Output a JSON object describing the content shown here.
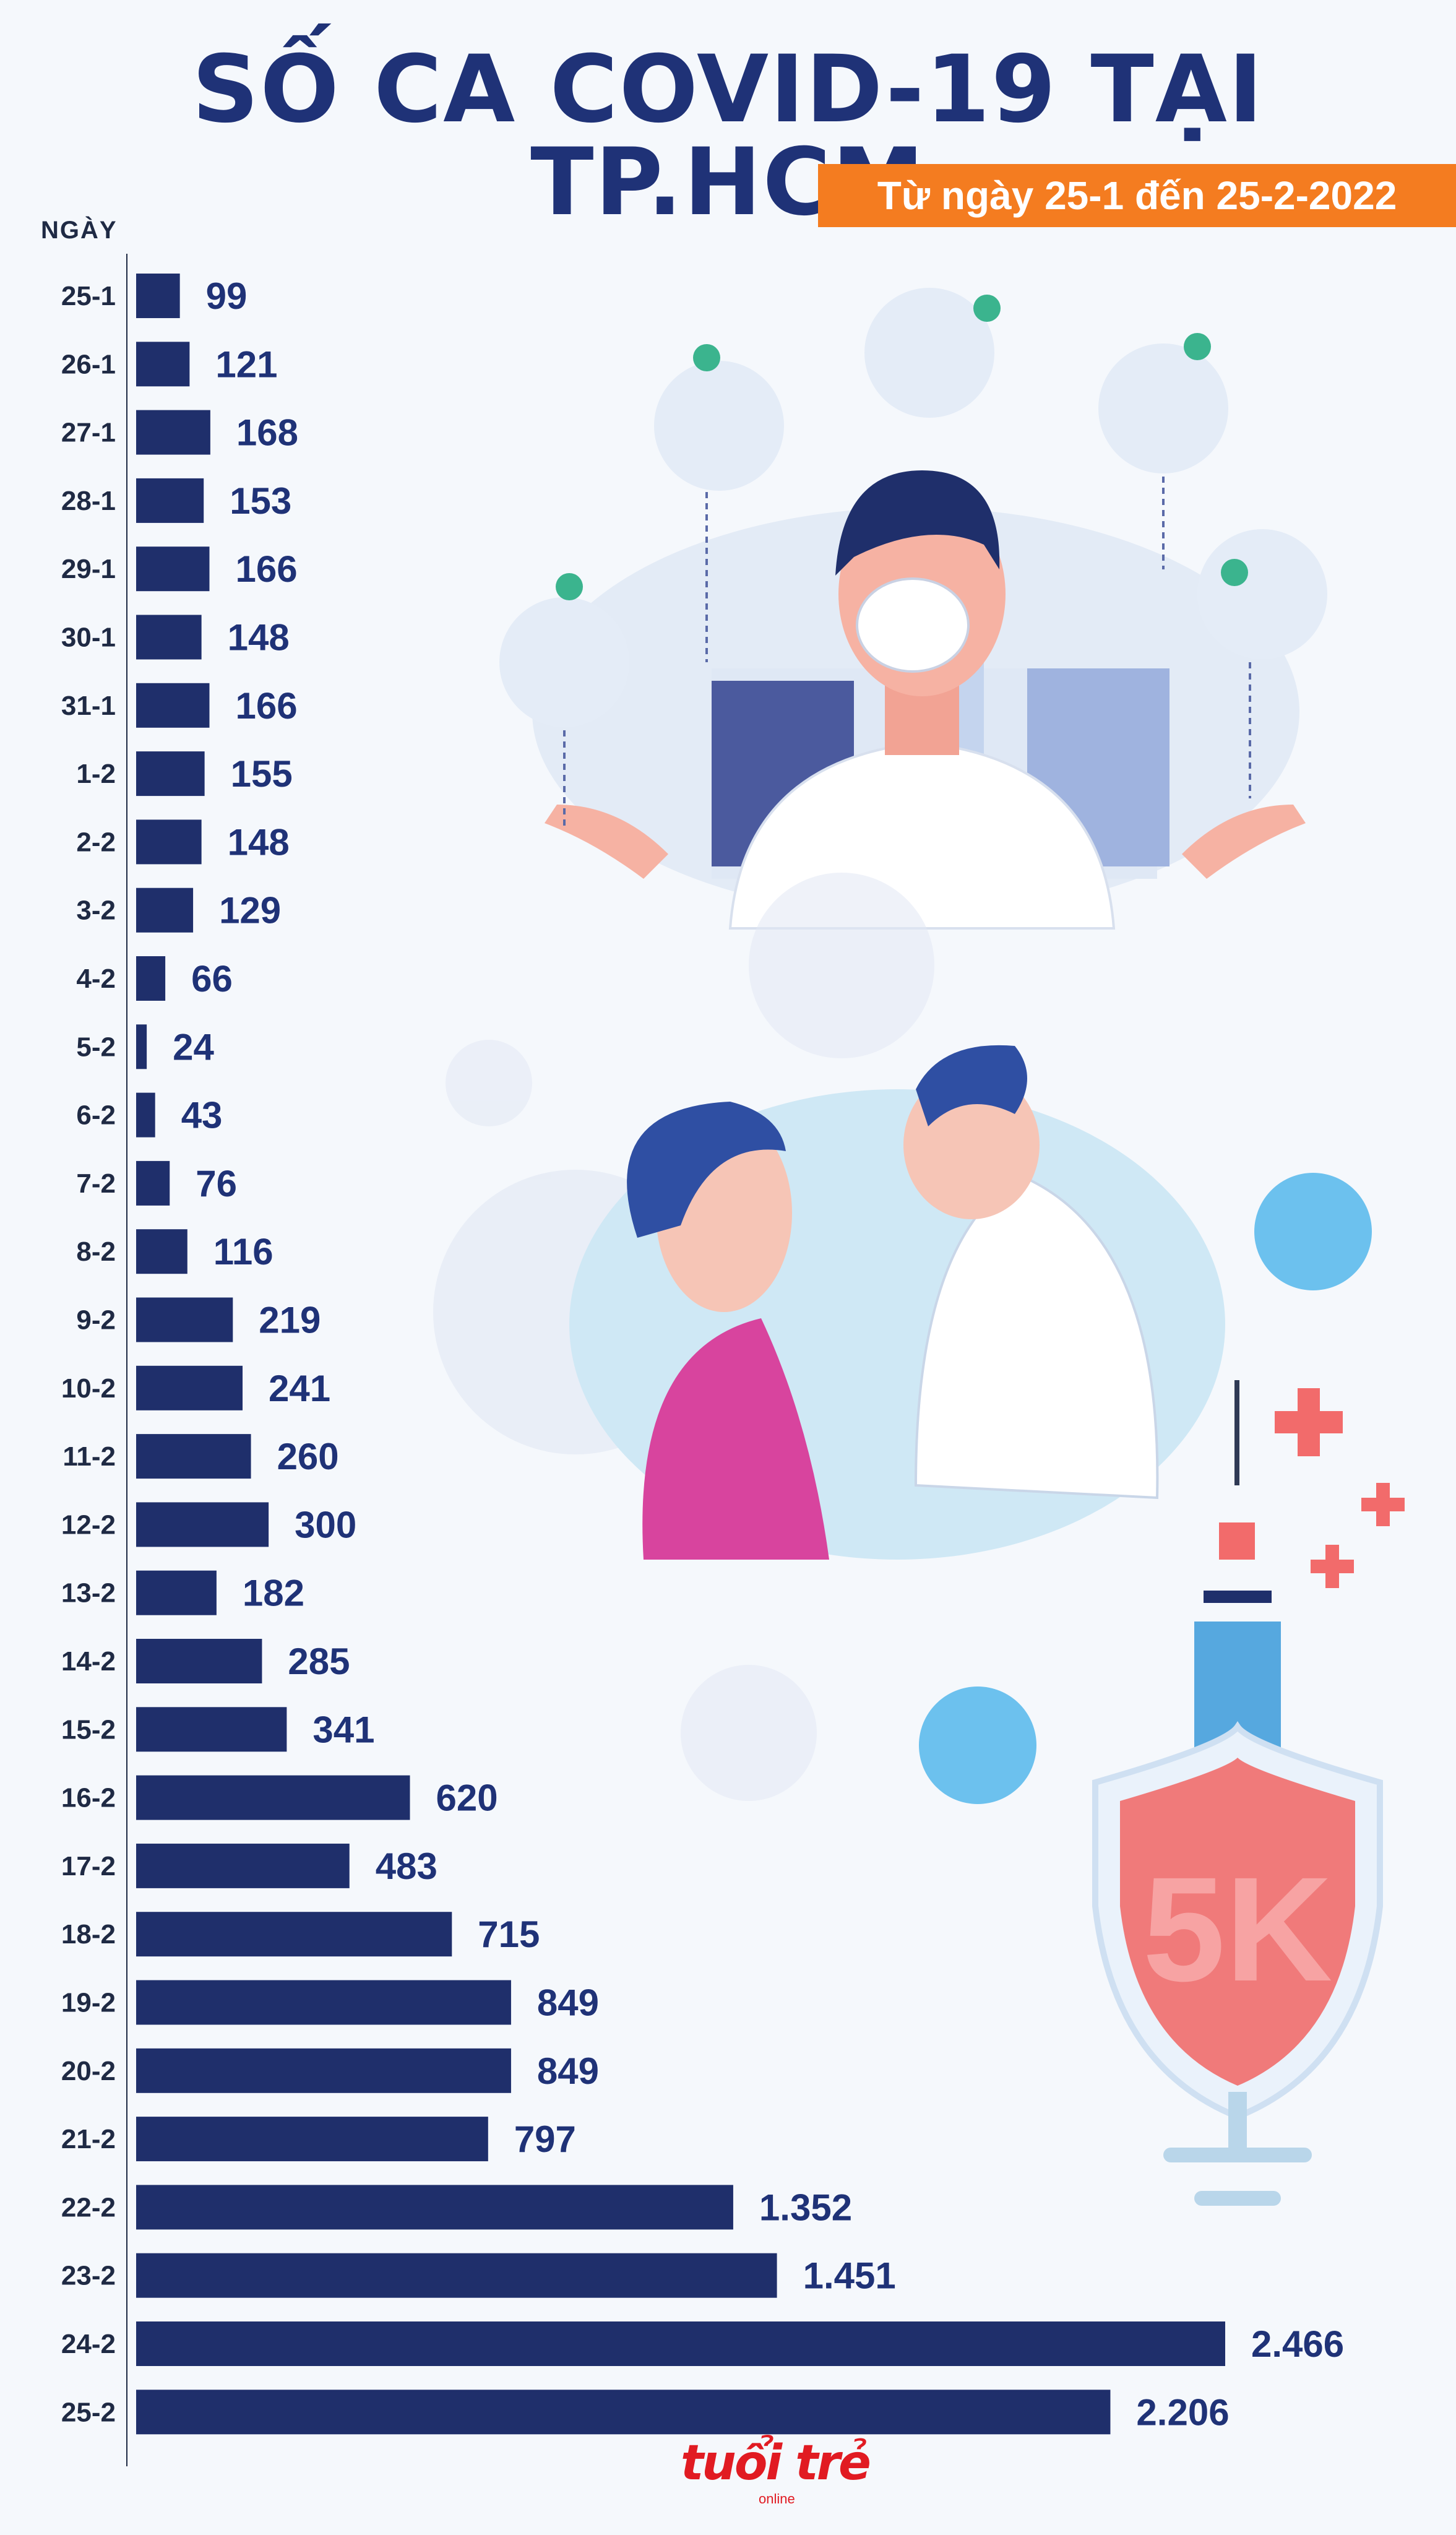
{
  "title": "SỐ CA COVID-19 TẠI TP.HCM",
  "subtitle": "Từ ngày 25-1 đến 25-2-2022",
  "logo": "tuổi trẻ",
  "logo_sub": "online",
  "colors": {
    "bar": "#1f2f6b",
    "title": "#1f3277",
    "badge": "#f47c20"
  },
  "chart_data": {
    "type": "bar",
    "orientation": "horizontal",
    "title": "SỐ CA COVID-19 TẠI TP.HCM",
    "subtitle": "Từ ngày 25-1 đến 25-2-2022",
    "ylabel": "NGÀY",
    "categories": [
      "25-1",
      "26-1",
      "27-1",
      "28-1",
      "29-1",
      "30-1",
      "31-1",
      "1-2",
      "2-2",
      "3-2",
      "4-2",
      "5-2",
      "6-2",
      "7-2",
      "8-2",
      "9-2",
      "10-2",
      "11-2",
      "12-2",
      "13-2",
      "14-2",
      "15-2",
      "16-2",
      "17-2",
      "18-2",
      "19-2",
      "20-2",
      "21-2",
      "22-2",
      "23-2",
      "24-2",
      "25-2"
    ],
    "values": [
      99,
      121,
      168,
      153,
      166,
      148,
      166,
      155,
      148,
      129,
      66,
      24,
      43,
      76,
      116,
      219,
      241,
      260,
      300,
      182,
      285,
      341,
      620,
      483,
      715,
      849,
      849,
      797,
      1352,
      1451,
      2466,
      2206
    ],
    "value_labels": [
      "99",
      "121",
      "168",
      "153",
      "166",
      "148",
      "166",
      "155",
      "148",
      "129",
      "66",
      "24",
      "43",
      "76",
      "116",
      "219",
      "241",
      "260",
      "300",
      "182",
      "285",
      "341",
      "620",
      "483",
      "715",
      "849",
      "849",
      "797",
      "1.352",
      "1.451",
      "2.466",
      "2.206"
    ],
    "xlim": [
      0,
      2466
    ],
    "grid": false,
    "legend": "none"
  }
}
